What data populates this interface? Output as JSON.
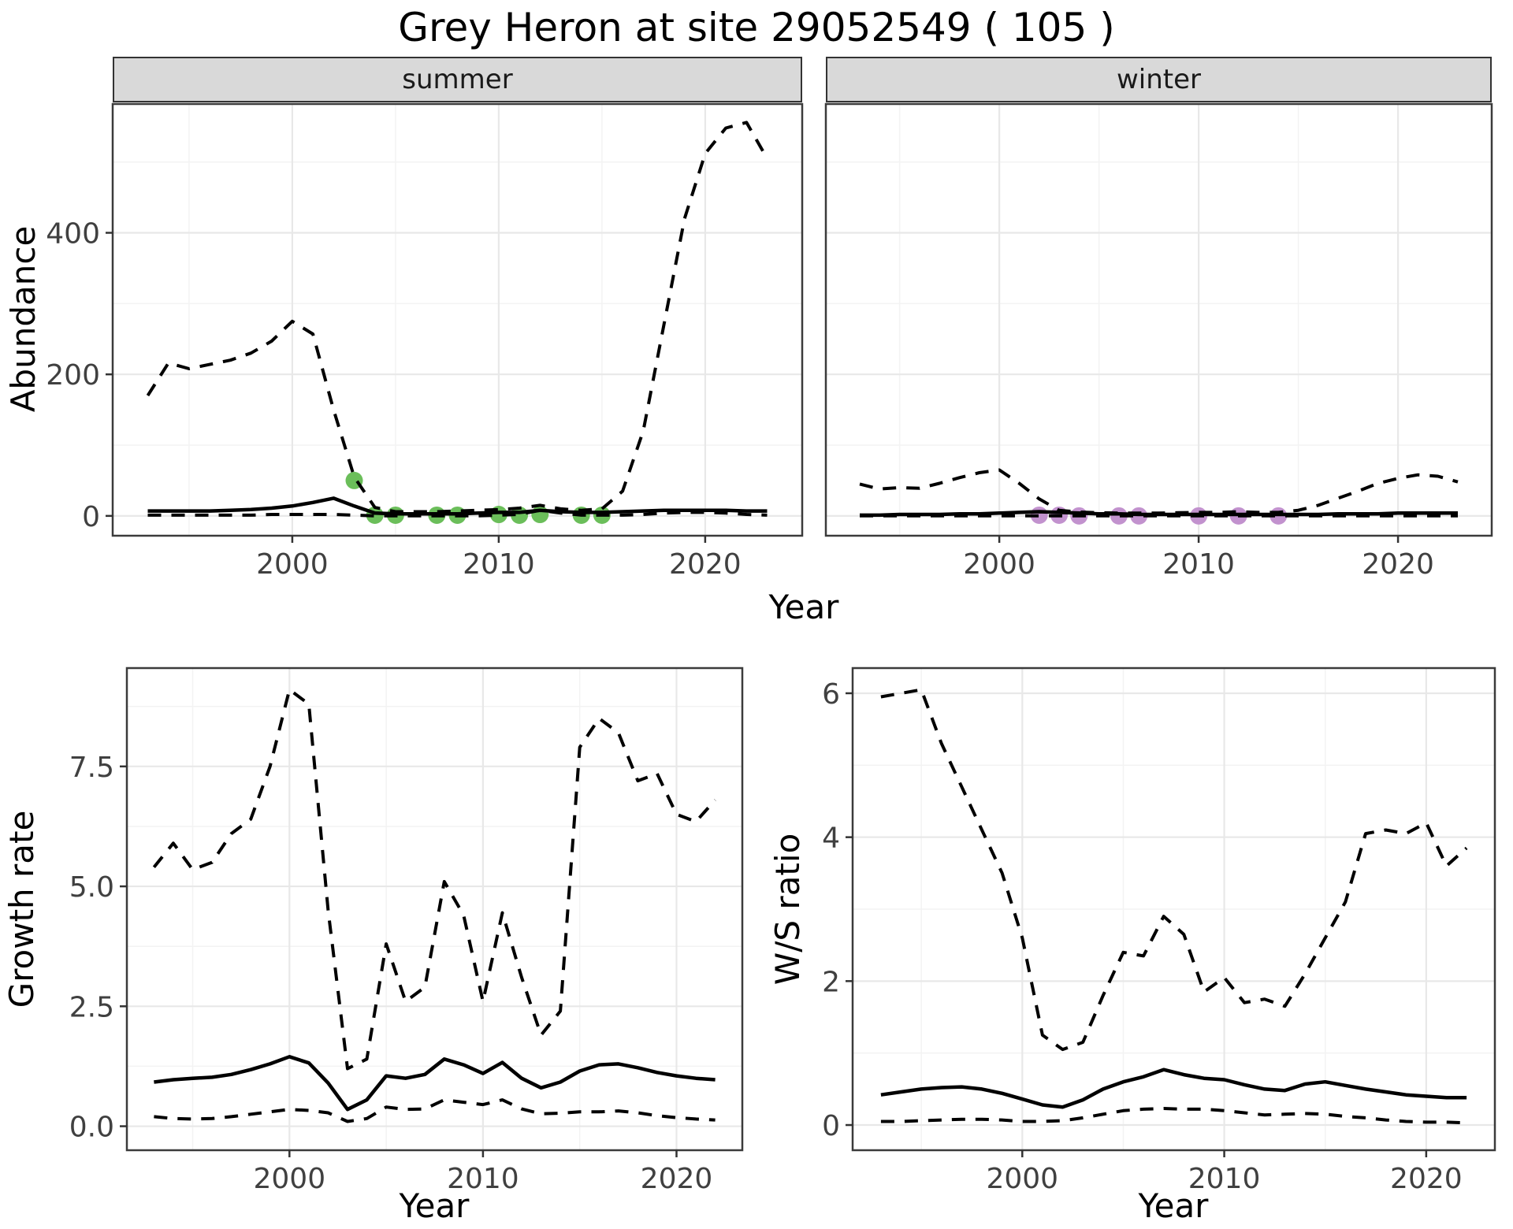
{
  "title": "Grey Heron at site 29052549 ( 105 )",
  "facets": {
    "summer": "summer",
    "winter": "winter"
  },
  "axis_titles": {
    "abundance_y": "Abundance",
    "top_x": "Year",
    "growth_y": "Growth rate",
    "growth_x": "Year",
    "ws_y": "W/S ratio",
    "ws_x": "Year"
  },
  "colors": {
    "summer_point": "#6BBE5A",
    "winter_point": "#C292CE",
    "line": "#000000",
    "grid_major": "#E8E8E8",
    "grid_minor": "#F3F3F3",
    "strip_bg": "#D9D9D9",
    "panel_border": "#3b3b3b",
    "tick_mark": "#333333",
    "tick_text": "#404040"
  },
  "chart_data": [
    {
      "id": "abundance-summer",
      "type": "line",
      "facet": "summer",
      "xlabel": "Year",
      "ylabel": "Abundance",
      "xlim": [
        1991.3,
        2024.7
      ],
      "ylim": [
        -28,
        582
      ],
      "xticks": [
        2000,
        2010,
        2020
      ],
      "xtick_labels": [
        "2000",
        "2010",
        "2020"
      ],
      "xticks_minor": [
        1995,
        2005,
        2015
      ],
      "yticks": [
        0,
        200,
        400
      ],
      "ytick_labels": [
        "0",
        "200",
        "400"
      ],
      "yticks_minor": [
        100,
        300,
        500
      ],
      "x": [
        1993,
        1994,
        1995,
        1996,
        1997,
        1998,
        1999,
        2000,
        2001,
        2002,
        2003,
        2004,
        2005,
        2006,
        2007,
        2008,
        2009,
        2010,
        2011,
        2012,
        2013,
        2014,
        2015,
        2016,
        2017,
        2018,
        2019,
        2020,
        2021,
        2022,
        2023
      ],
      "series": [
        {
          "name": "upper-ci",
          "style": "dashed",
          "values": [
            170,
            216,
            208,
            214,
            220,
            230,
            247,
            275,
            257,
            150,
            55,
            12,
            6,
            6,
            6,
            7,
            8,
            9,
            11,
            15,
            10,
            8,
            10,
            35,
            120,
            270,
            420,
            512,
            548,
            556,
            505
          ]
        },
        {
          "name": "median",
          "style": "solid",
          "values": [
            7,
            7,
            7,
            7,
            8,
            9,
            11,
            14,
            19,
            25,
            14,
            4,
            3,
            3,
            3,
            3,
            4,
            5,
            5,
            8,
            6,
            5,
            5,
            6,
            7,
            8,
            8,
            8,
            8,
            7,
            7
          ]
        },
        {
          "name": "lower-ci",
          "style": "dashed",
          "values": [
            1,
            1,
            1,
            1,
            1,
            1,
            2,
            2,
            2,
            2,
            1,
            0,
            0,
            0,
            0,
            0,
            0,
            1,
            2,
            8,
            4,
            1,
            1,
            1,
            2,
            4,
            5,
            5,
            4,
            2,
            1
          ]
        }
      ],
      "points": {
        "name": "observed-count",
        "color": "#6BBE5A",
        "x": [
          2003,
          2004,
          2005,
          2007,
          2008,
          2010,
          2011,
          2012,
          2014,
          2015
        ],
        "y": [
          50,
          1,
          1,
          1,
          1,
          2,
          1,
          2,
          1,
          1
        ]
      }
    },
    {
      "id": "abundance-winter",
      "type": "line",
      "facet": "winter",
      "xlabel": "Year",
      "ylabel": "Abundance",
      "xlim": [
        1991.3,
        2024.7
      ],
      "ylim": [
        -28,
        582
      ],
      "xticks": [
        2000,
        2010,
        2020
      ],
      "xtick_labels": [
        "2000",
        "2010",
        "2020"
      ],
      "xticks_minor": [
        1995,
        2005,
        2015
      ],
      "yticks": [
        0,
        200,
        400
      ],
      "ytick_labels": [
        "0",
        "200",
        "400"
      ],
      "yticks_minor": [
        100,
        300,
        500
      ],
      "x": [
        1993,
        1994,
        1995,
        1996,
        1997,
        1998,
        1999,
        2000,
        2001,
        2002,
        2003,
        2004,
        2005,
        2006,
        2007,
        2008,
        2009,
        2010,
        2011,
        2012,
        2013,
        2014,
        2015,
        2016,
        2017,
        2018,
        2019,
        2020,
        2021,
        2022,
        2023
      ],
      "series": [
        {
          "name": "upper-ci",
          "style": "dashed",
          "values": [
            45,
            38,
            40,
            39,
            46,
            54,
            61,
            65,
            46,
            24,
            8,
            5.5,
            4.5,
            4,
            4,
            4,
            4.5,
            5,
            5,
            6,
            5,
            5,
            8,
            15,
            25,
            35,
            46,
            53,
            58,
            56,
            48
          ]
        },
        {
          "name": "median",
          "style": "solid",
          "values": [
            1,
            1,
            2,
            2,
            2,
            3,
            3,
            4,
            5,
            6,
            5,
            4,
            3,
            3,
            2,
            2,
            2,
            2,
            2,
            2,
            2,
            2,
            2,
            2,
            3,
            3,
            3,
            4,
            4,
            4,
            4
          ]
        },
        {
          "name": "lower-ci",
          "style": "dashed",
          "values": [
            0,
            0,
            0,
            0,
            0,
            0,
            0,
            0,
            0,
            0,
            0,
            0,
            0,
            0,
            0,
            0,
            0,
            0,
            0,
            0,
            0,
            0,
            0,
            0,
            0,
            0,
            0,
            0,
            0,
            0,
            0
          ]
        }
      ],
      "points": {
        "name": "observed-count",
        "color": "#C292CE",
        "x": [
          2002,
          2003,
          2004,
          2006,
          2007,
          2010,
          2012,
          2014
        ],
        "y": [
          1,
          1,
          0,
          0,
          0,
          0,
          0,
          0
        ]
      }
    },
    {
      "id": "growth-rate",
      "type": "line",
      "xlabel": "Year",
      "ylabel": "Growth rate",
      "xlim": [
        1991.6,
        2023.4
      ],
      "ylim": [
        -0.5,
        9.55
      ],
      "xticks": [
        2000,
        2010,
        2020
      ],
      "xtick_labels": [
        "2000",
        "2010",
        "2020"
      ],
      "xticks_minor": [
        1995,
        2005,
        2015
      ],
      "yticks": [
        0.0,
        2.5,
        5.0,
        7.5
      ],
      "ytick_labels": [
        "0.0",
        "2.5",
        "5.0",
        "7.5"
      ],
      "yticks_minor": [
        1.25,
        3.75,
        6.25,
        8.75
      ],
      "x": [
        1993,
        1994,
        1995,
        1996,
        1997,
        1998,
        1999,
        2000,
        2001,
        2002,
        2003,
        2004,
        2005,
        2006,
        2007,
        2008,
        2009,
        2010,
        2011,
        2012,
        2013,
        2014,
        2015,
        2016,
        2017,
        2018,
        2019,
        2020,
        2021,
        2022
      ],
      "series": [
        {
          "name": "upper-ci",
          "style": "dashed",
          "values": [
            5.4,
            5.9,
            5.35,
            5.5,
            6.1,
            6.4,
            7.5,
            9.1,
            8.8,
            4.5,
            1.2,
            1.4,
            3.8,
            2.6,
            2.9,
            5.1,
            4.4,
            2.6,
            4.45,
            3.1,
            1.9,
            2.4,
            7.9,
            8.5,
            8.2,
            7.2,
            7.35,
            6.5,
            6.35,
            6.8
          ]
        },
        {
          "name": "median",
          "style": "solid",
          "values": [
            0.92,
            0.97,
            1.0,
            1.02,
            1.08,
            1.18,
            1.3,
            1.45,
            1.32,
            0.9,
            0.35,
            0.55,
            1.05,
            1.0,
            1.08,
            1.4,
            1.28,
            1.1,
            1.33,
            1.0,
            0.8,
            0.92,
            1.15,
            1.28,
            1.3,
            1.22,
            1.12,
            1.05,
            1.0,
            0.97
          ]
        },
        {
          "name": "lower-ci",
          "style": "dashed",
          "values": [
            0.2,
            0.16,
            0.15,
            0.16,
            0.2,
            0.25,
            0.3,
            0.35,
            0.33,
            0.28,
            0.1,
            0.16,
            0.4,
            0.35,
            0.36,
            0.55,
            0.5,
            0.45,
            0.55,
            0.36,
            0.26,
            0.27,
            0.3,
            0.3,
            0.32,
            0.28,
            0.22,
            0.18,
            0.15,
            0.13
          ]
        }
      ]
    },
    {
      "id": "ws-ratio",
      "type": "line",
      "xlabel": "Year",
      "ylabel": "W/S ratio",
      "xlim": [
        1991.6,
        2023.4
      ],
      "ylim": [
        -0.35,
        6.35
      ],
      "xticks": [
        2000,
        2010,
        2020
      ],
      "xtick_labels": [
        "2000",
        "2010",
        "2020"
      ],
      "xticks_minor": [
        1995,
        2005,
        2015
      ],
      "yticks": [
        0,
        2,
        4,
        6
      ],
      "ytick_labels": [
        "0",
        "2",
        "4",
        "6"
      ],
      "yticks_minor": [
        1,
        3,
        5
      ],
      "x": [
        1993,
        1994,
        1995,
        1996,
        1997,
        1998,
        1999,
        2000,
        2001,
        2002,
        2003,
        2004,
        2005,
        2006,
        2007,
        2008,
        2009,
        2010,
        2011,
        2012,
        2013,
        2014,
        2015,
        2016,
        2017,
        2018,
        2019,
        2020,
        2021,
        2022
      ],
      "series": [
        {
          "name": "upper-ci",
          "style": "dashed",
          "values": [
            5.95,
            6.0,
            6.05,
            5.3,
            4.7,
            4.1,
            3.5,
            2.6,
            1.25,
            1.05,
            1.15,
            1.8,
            2.4,
            2.35,
            2.9,
            2.65,
            1.85,
            2.05,
            1.7,
            1.75,
            1.65,
            2.1,
            2.6,
            3.1,
            4.05,
            4.1,
            4.05,
            4.2,
            3.6,
            3.85
          ]
        },
        {
          "name": "median",
          "style": "solid",
          "values": [
            0.42,
            0.46,
            0.5,
            0.52,
            0.53,
            0.5,
            0.44,
            0.36,
            0.28,
            0.25,
            0.35,
            0.5,
            0.6,
            0.67,
            0.77,
            0.7,
            0.65,
            0.63,
            0.56,
            0.5,
            0.48,
            0.57,
            0.6,
            0.55,
            0.5,
            0.46,
            0.42,
            0.4,
            0.38,
            0.38
          ]
        },
        {
          "name": "lower-ci",
          "style": "dashed",
          "values": [
            0.05,
            0.05,
            0.06,
            0.07,
            0.08,
            0.08,
            0.07,
            0.05,
            0.05,
            0.06,
            0.1,
            0.15,
            0.2,
            0.22,
            0.23,
            0.22,
            0.22,
            0.2,
            0.17,
            0.14,
            0.15,
            0.16,
            0.15,
            0.12,
            0.1,
            0.07,
            0.05,
            0.04,
            0.04,
            0.03
          ]
        }
      ]
    }
  ]
}
